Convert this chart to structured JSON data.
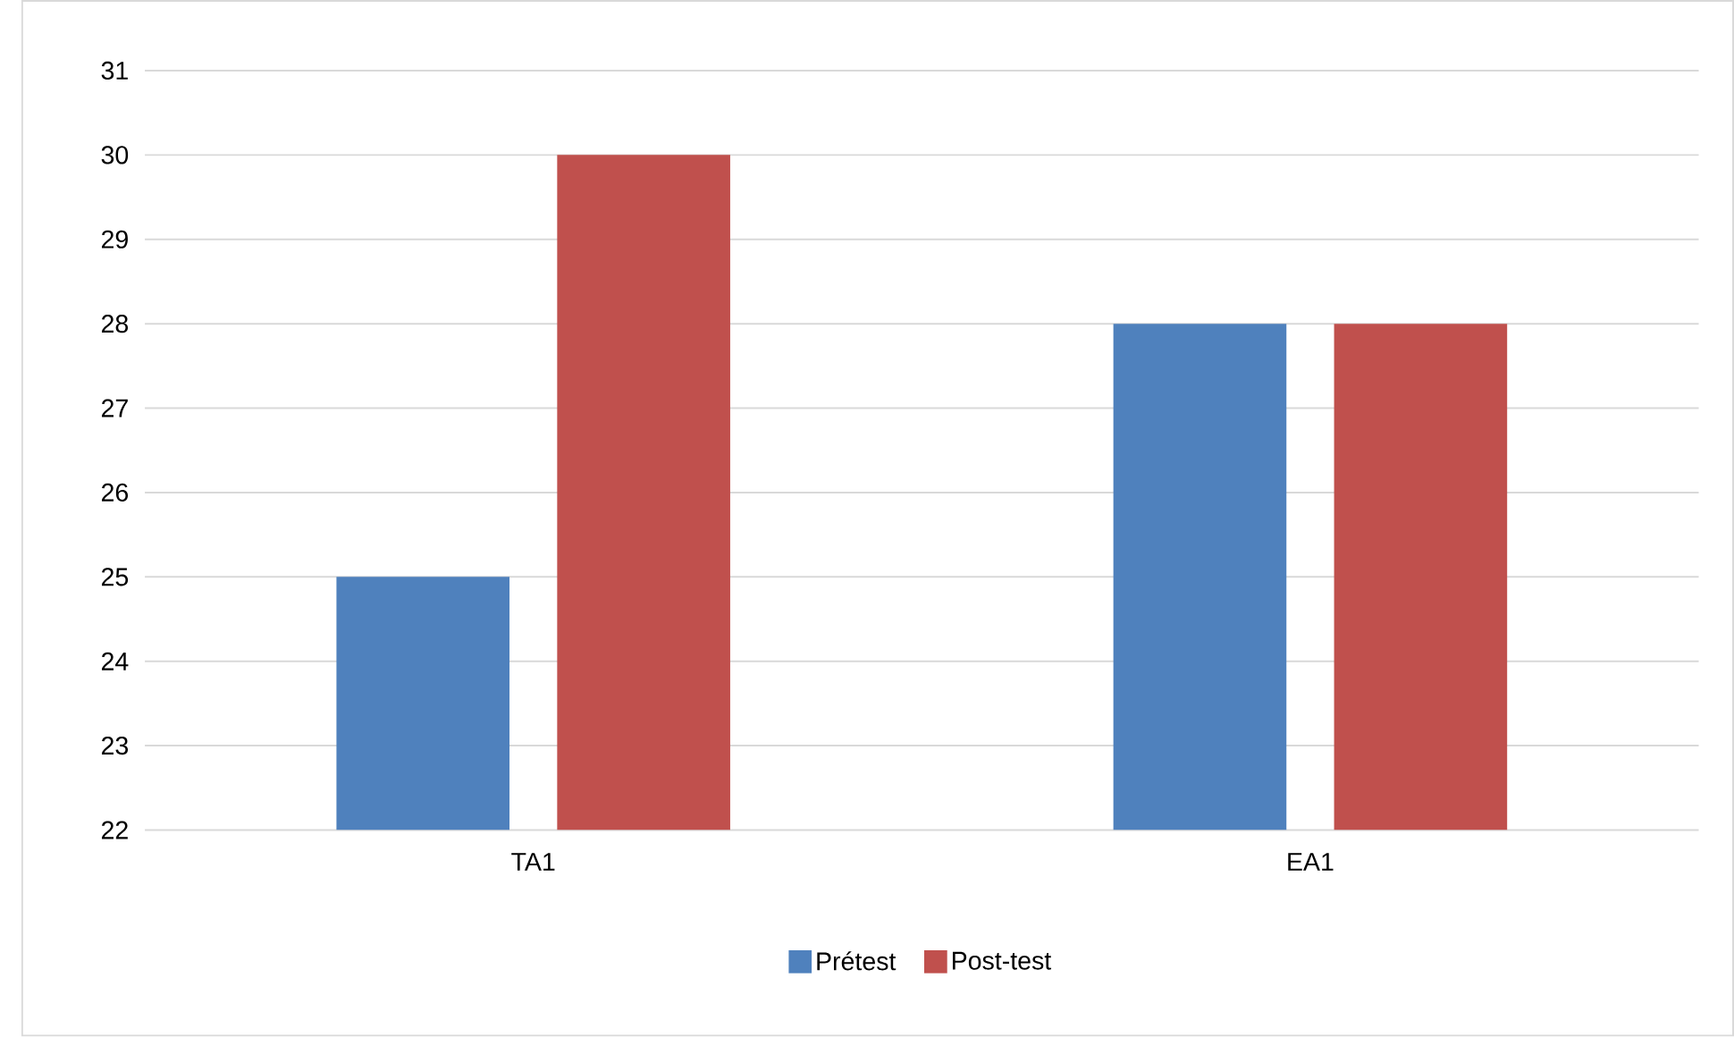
{
  "chart_data": {
    "type": "bar",
    "categories": [
      "TA1",
      "EA1"
    ],
    "series": [
      {
        "name": "Prétest",
        "color": "#4f81bd",
        "values": [
          25,
          28
        ]
      },
      {
        "name": "Post-test",
        "color": "#c0504d",
        "values": [
          30,
          28
        ]
      }
    ],
    "ylim": [
      22,
      31
    ],
    "yticks": [
      22,
      23,
      24,
      25,
      26,
      27,
      28,
      29,
      30,
      31
    ],
    "grid": "y",
    "legend": "bottom"
  }
}
